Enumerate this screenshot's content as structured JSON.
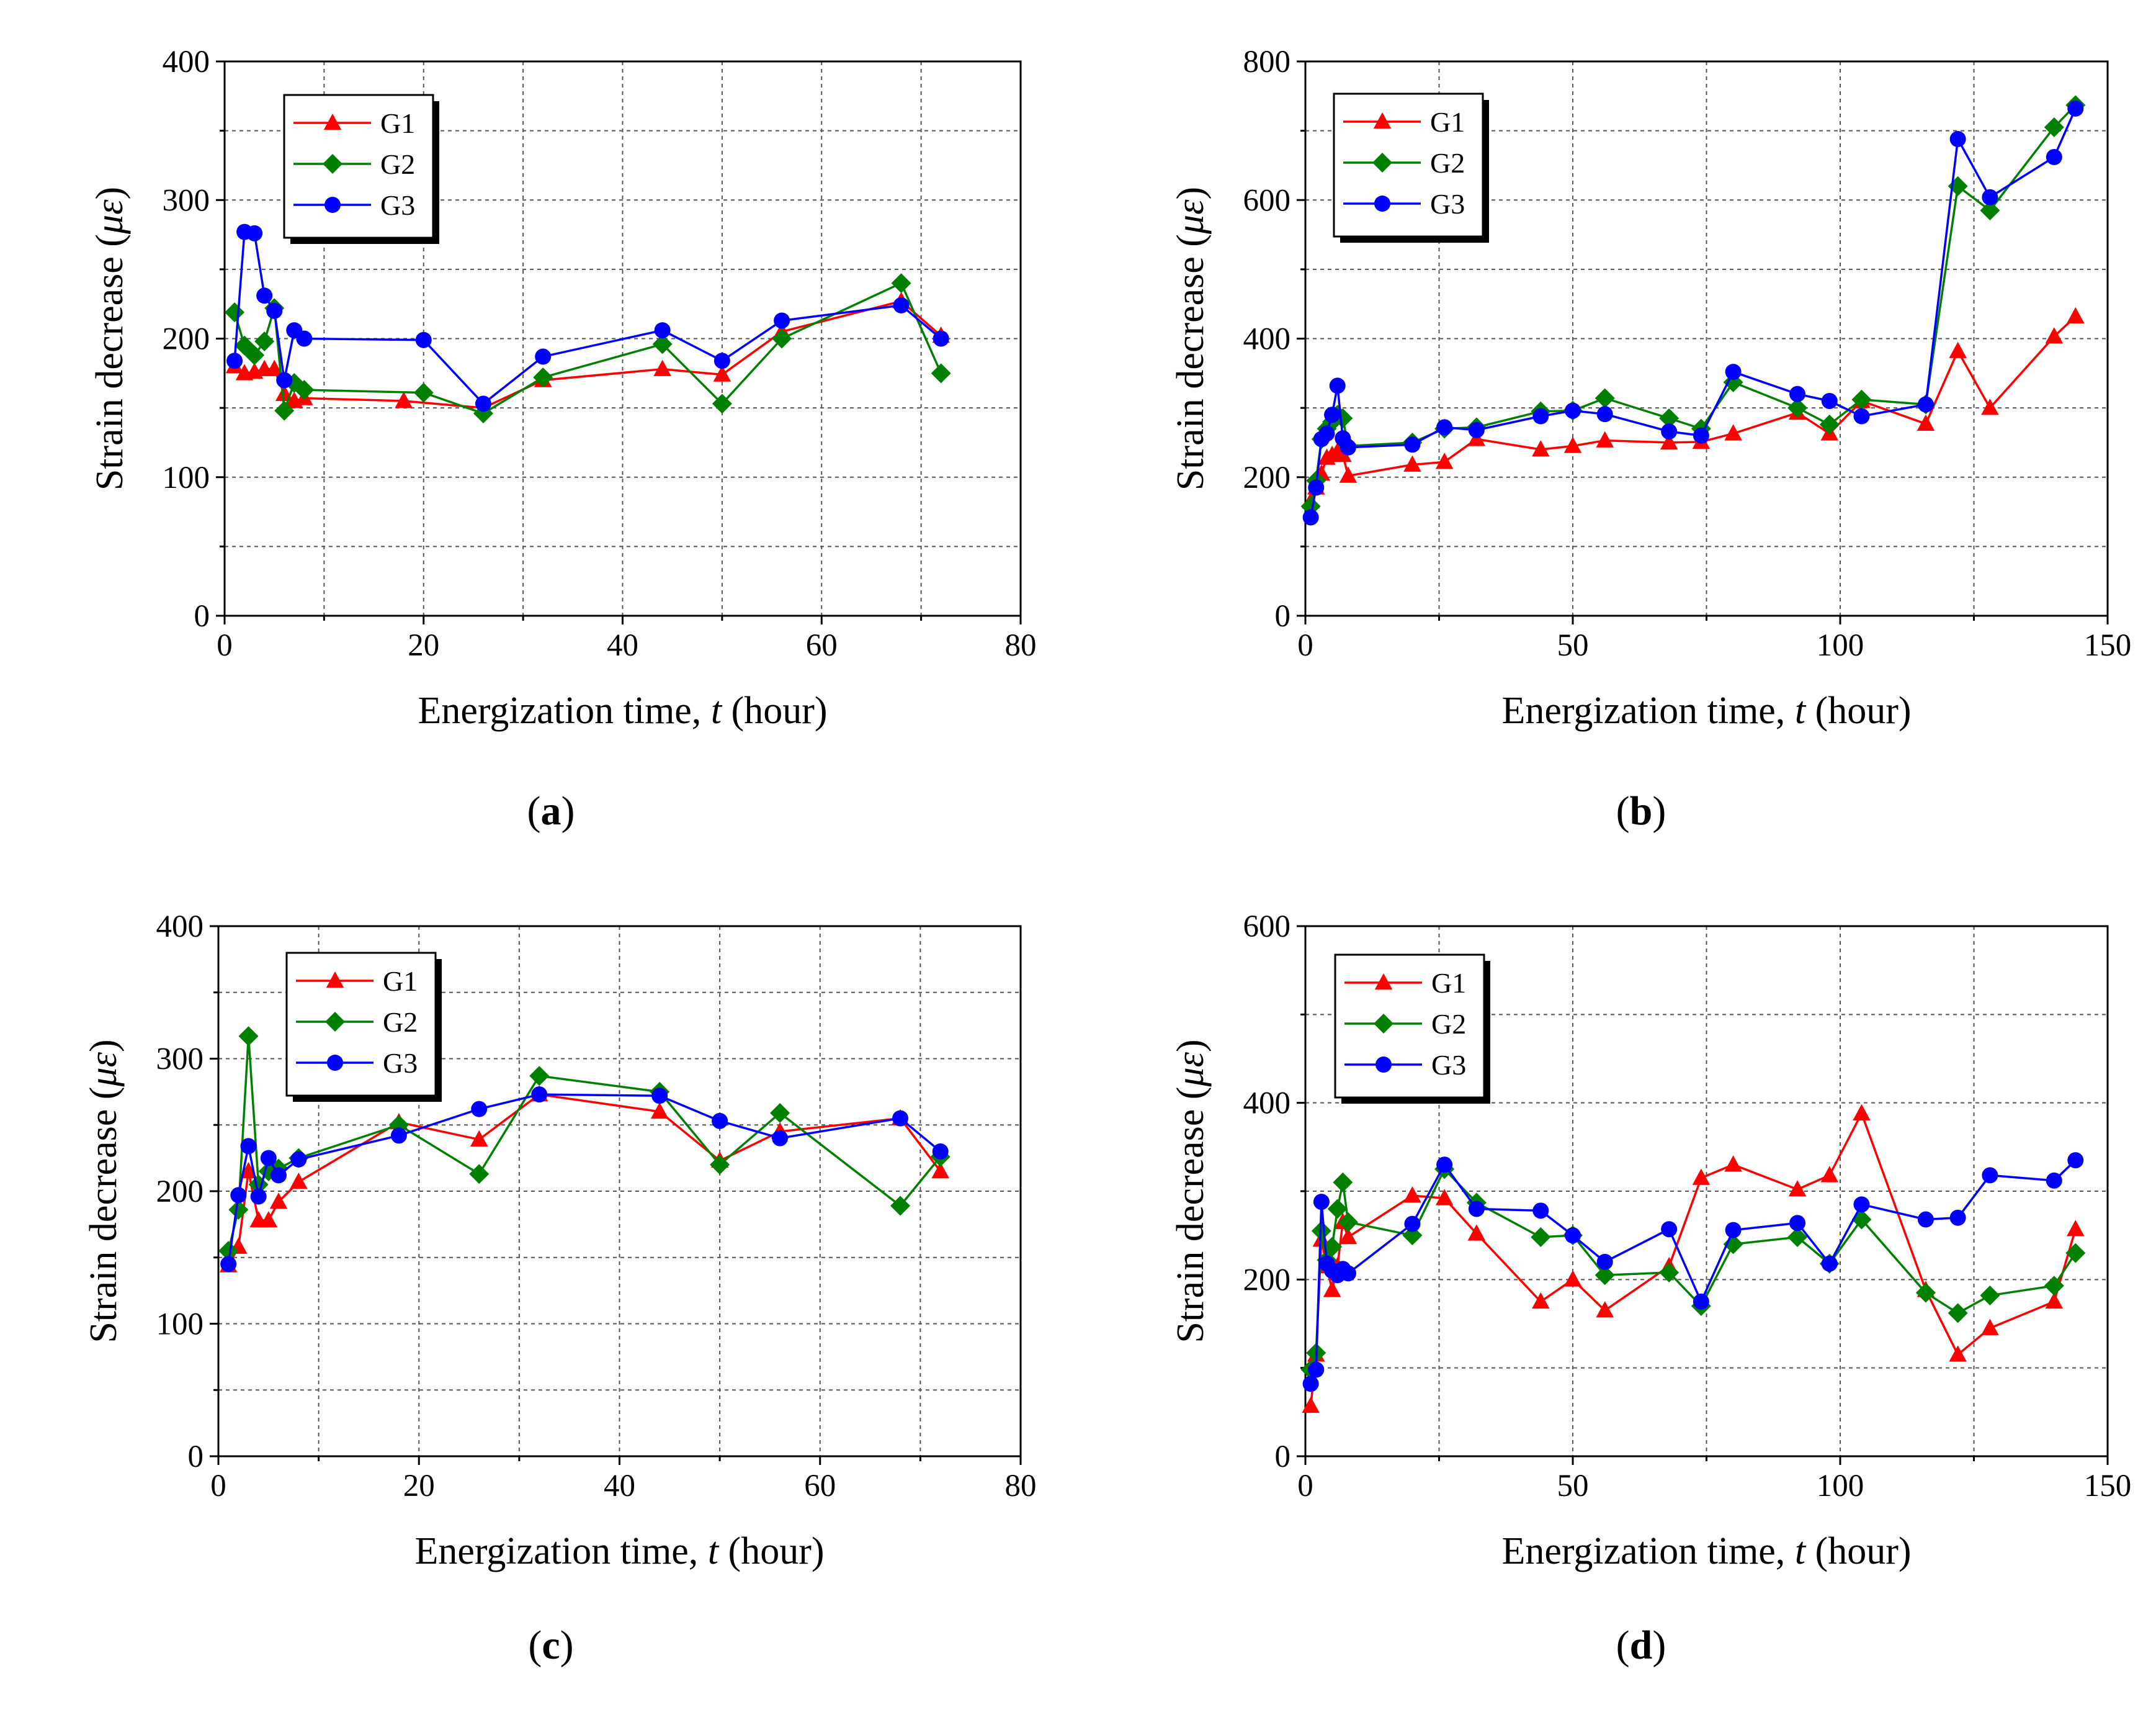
{
  "figure": {
    "panels_order": [
      "a",
      "b",
      "c",
      "d"
    ]
  },
  "chart_data": [
    {
      "id": "a",
      "panel_label": "a",
      "type": "line",
      "title": "",
      "xlabel_prefix": "Energization time, ",
      "xlabel_var": "t",
      "xlabel_suffix": " (hour)",
      "ylabel_prefix": "Strain decrease  (",
      "ylabel_var": "με",
      "ylabel_suffix": ")",
      "xlim": [
        0,
        80
      ],
      "ylim": [
        0,
        400
      ],
      "xticks": [
        0,
        20,
        40,
        60,
        80
      ],
      "yticks": [
        0,
        100,
        200,
        300,
        400
      ],
      "xgrid": [
        10,
        20,
        30,
        40,
        50,
        60,
        70
      ],
      "ygrid": [
        50,
        100,
        150,
        200,
        250,
        300,
        350
      ],
      "legend_position": "top-left",
      "grid": true,
      "series": [
        {
          "name": "G1",
          "color": "#ff0000",
          "marker": "triangle",
          "x": [
            1,
            2,
            3,
            4,
            5,
            6,
            7,
            8,
            18,
            26,
            32,
            44,
            50,
            56,
            68,
            72
          ],
          "y": [
            180,
            175,
            176,
            178,
            178,
            160,
            155,
            157,
            155,
            150,
            170,
            178,
            174,
            205,
            227,
            202
          ]
        },
        {
          "name": "G2",
          "color": "#008000",
          "marker": "diamond",
          "x": [
            1,
            2,
            3,
            4,
            5,
            6,
            7,
            8,
            20,
            26,
            32,
            44,
            50,
            56,
            68,
            72
          ],
          "y": [
            219,
            195,
            188,
            198,
            222,
            148,
            168,
            163,
            161,
            146,
            172,
            196,
            153,
            200,
            240,
            175
          ]
        },
        {
          "name": "G3",
          "color": "#0000ff",
          "marker": "circle",
          "x": [
            1,
            2,
            3,
            4,
            5,
            6,
            7,
            8,
            20,
            26,
            32,
            44,
            50,
            56,
            68,
            72
          ],
          "y": [
            184,
            277,
            276,
            231,
            220,
            170,
            206,
            200,
            199,
            153,
            187,
            206,
            184,
            213,
            224,
            200
          ]
        }
      ]
    },
    {
      "id": "b",
      "panel_label": "b",
      "type": "line",
      "title": "",
      "xlabel_prefix": "Energization time, ",
      "xlabel_var": "t",
      "xlabel_suffix": " (hour)",
      "ylabel_prefix": "Strain decrease  (",
      "ylabel_var": "με",
      "ylabel_suffix": ")",
      "xlim": [
        0,
        150
      ],
      "ylim": [
        0,
        800
      ],
      "xticks": [
        0,
        50,
        100,
        150
      ],
      "yticks": [
        0,
        200,
        400,
        600,
        800
      ],
      "xgrid": [
        25,
        50,
        75,
        100,
        125
      ],
      "ygrid": [
        100,
        200,
        300,
        400,
        500,
        600,
        700
      ],
      "legend_position": "top-left",
      "grid": true,
      "series": [
        {
          "name": "G1",
          "color": "#ff0000",
          "marker": "triangle",
          "x": [
            1,
            2,
            3,
            4,
            5,
            6,
            7,
            8,
            20,
            26,
            32,
            44,
            50,
            56,
            68,
            74,
            80,
            92,
            98,
            104,
            116,
            122,
            128,
            140,
            144
          ],
          "y": [
            165,
            185,
            205,
            228,
            232,
            237,
            232,
            202,
            218,
            222,
            255,
            240,
            245,
            253,
            250,
            251,
            263,
            293,
            263,
            310,
            277,
            382,
            300,
            403,
            432
          ]
        },
        {
          "name": "G2",
          "color": "#008000",
          "marker": "diamond",
          "x": [
            1,
            2,
            3,
            4,
            5,
            6,
            7,
            8,
            20,
            26,
            32,
            44,
            50,
            56,
            68,
            74,
            80,
            92,
            98,
            104,
            116,
            122,
            128,
            140,
            144
          ],
          "y": [
            158,
            195,
            255,
            270,
            280,
            290,
            285,
            245,
            250,
            270,
            272,
            295,
            296,
            314,
            285,
            270,
            337,
            300,
            276,
            312,
            305,
            620,
            585,
            705,
            737
          ]
        },
        {
          "name": "G3",
          "color": "#0000ff",
          "marker": "circle",
          "x": [
            1,
            2,
            3,
            4,
            5,
            6,
            7,
            8,
            20,
            26,
            32,
            44,
            50,
            56,
            68,
            74,
            80,
            92,
            98,
            104,
            116,
            122,
            128,
            140,
            144
          ],
          "y": [
            142,
            185,
            255,
            263,
            290,
            332,
            256,
            243,
            247,
            272,
            268,
            288,
            296,
            291,
            266,
            260,
            352,
            320,
            310,
            288,
            305,
            688,
            604,
            662,
            732
          ]
        }
      ]
    },
    {
      "id": "c",
      "panel_label": "c",
      "type": "line",
      "title": "",
      "xlabel_prefix": "Energization time, ",
      "xlabel_var": "t",
      "xlabel_suffix": " (hour)",
      "ylabel_prefix": "Strain decrease  (",
      "ylabel_var": "με",
      "ylabel_suffix": ")",
      "xlim": [
        0,
        80
      ],
      "ylim": [
        0,
        400
      ],
      "xticks": [
        0,
        20,
        40,
        60,
        80
      ],
      "yticks": [
        0,
        100,
        200,
        300,
        400
      ],
      "xgrid": [
        10,
        20,
        30,
        40,
        50,
        60,
        70
      ],
      "ygrid": [
        50,
        100,
        150,
        200,
        250,
        300,
        350
      ],
      "legend_position": "top-left",
      "grid": true,
      "series": [
        {
          "name": "G1",
          "color": "#ff0000",
          "marker": "triangle",
          "x": [
            1,
            2,
            3,
            4,
            5,
            6,
            8,
            18,
            26,
            32,
            44,
            50,
            56,
            68,
            72
          ],
          "y": [
            144,
            158,
            215,
            178,
            178,
            192,
            207,
            252,
            239,
            273,
            260,
            223,
            245,
            255,
            215
          ]
        },
        {
          "name": "G2",
          "color": "#008000",
          "marker": "diamond",
          "x": [
            1,
            2,
            3,
            4,
            5,
            6,
            8,
            18,
            26,
            32,
            44,
            50,
            56,
            68,
            72
          ],
          "y": [
            155,
            186,
            317,
            205,
            215,
            217,
            225,
            250,
            213,
            287,
            275,
            220,
            259,
            189,
            226
          ]
        },
        {
          "name": "G3",
          "color": "#0000ff",
          "marker": "circle",
          "x": [
            1,
            2,
            3,
            4,
            5,
            6,
            8,
            18,
            26,
            32,
            44,
            50,
            56,
            68,
            72
          ],
          "y": [
            145,
            197,
            234,
            196,
            225,
            212,
            224,
            242,
            262,
            273,
            272,
            253,
            240,
            255,
            230
          ]
        }
      ]
    },
    {
      "id": "d",
      "panel_label": "d",
      "type": "line",
      "title": "",
      "xlabel_prefix": "Energization time, ",
      "xlabel_var": "t",
      "xlabel_suffix": " (hour)",
      "ylabel_prefix": "Strain decrease  (",
      "ylabel_var": "με",
      "ylabel_suffix": ")",
      "xlim": [
        0,
        150
      ],
      "ylim": [
        0,
        600
      ],
      "xticks": [
        0,
        50,
        100,
        150
      ],
      "yticks": [
        0,
        200,
        400,
        600
      ],
      "xgrid": [
        25,
        50,
        75,
        100,
        125
      ],
      "ygrid": [
        100,
        200,
        300,
        400,
        500
      ],
      "legend_position": "top-left",
      "grid": true,
      "series": [
        {
          "name": "G1",
          "color": "#ff0000",
          "marker": "triangle",
          "x": [
            1,
            2,
            3,
            4,
            5,
            6,
            7,
            8,
            20,
            26,
            32,
            44,
            50,
            56,
            68,
            74,
            80,
            92,
            98,
            104,
            116,
            122,
            128,
            140,
            144
          ],
          "y": [
            57,
            115,
            245,
            215,
            188,
            215,
            265,
            248,
            295,
            292,
            252,
            175,
            200,
            165,
            215,
            315,
            330,
            302,
            318,
            388,
            188,
            115,
            145,
            175,
            257
          ]
        },
        {
          "name": "G2",
          "color": "#008000",
          "marker": "diamond",
          "x": [
            1,
            2,
            3,
            4,
            5,
            6,
            7,
            8,
            20,
            26,
            32,
            44,
            50,
            56,
            68,
            74,
            80,
            92,
            98,
            104,
            116,
            122,
            128,
            140,
            144
          ],
          "y": [
            98,
            117,
            255,
            222,
            237,
            280,
            310,
            265,
            250,
            325,
            287,
            248,
            250,
            205,
            208,
            170,
            240,
            248,
            218,
            268,
            185,
            162,
            182,
            193,
            230
          ]
        },
        {
          "name": "G3",
          "color": "#0000ff",
          "marker": "circle",
          "x": [
            1,
            2,
            3,
            4,
            5,
            6,
            7,
            8,
            20,
            26,
            32,
            44,
            50,
            56,
            68,
            74,
            80,
            92,
            98,
            104,
            116,
            122,
            128,
            140,
            144
          ],
          "y": [
            82,
            98,
            288,
            218,
            210,
            205,
            212,
            207,
            263,
            330,
            280,
            278,
            250,
            220,
            257,
            175,
            256,
            264,
            218,
            285,
            268,
            270,
            318,
            312,
            335
          ]
        }
      ]
    }
  ]
}
